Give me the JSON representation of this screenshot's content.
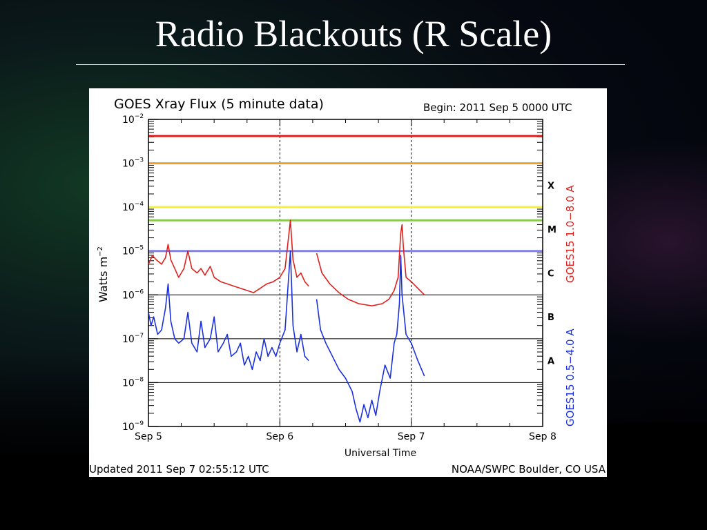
{
  "slide": {
    "title": "Radio Blackouts (R Scale)"
  },
  "chart_data": {
    "type": "line",
    "title": "GOES Xray Flux (5 minute data)",
    "begin_label": "Begin:  2011 Sep 5 0000 UTC",
    "xlabel": "Universal Time",
    "ylabel": "Watts m",
    "ylabel_sup": "−2",
    "updated_label": "Updated 2011 Sep  7 02:55:12 UTC",
    "source_label": "NOAA/SWPC Boulder, CO USA",
    "y_scale": "log",
    "ylim_exp": [
      -9,
      -2
    ],
    "xlim_days": [
      0,
      3
    ],
    "x_ticks": [
      {
        "d": 0,
        "label": "Sep 5"
      },
      {
        "d": 1,
        "label": "Sep 6"
      },
      {
        "d": 2,
        "label": "Sep 7"
      },
      {
        "d": 3,
        "label": "Sep 8"
      }
    ],
    "y_ticks": [
      {
        "exp": -2,
        "base": "10",
        "sup": "−2"
      },
      {
        "exp": -3,
        "base": "10",
        "sup": "−3"
      },
      {
        "exp": -4,
        "base": "10",
        "sup": "−4"
      },
      {
        "exp": -5,
        "base": "10",
        "sup": "−5"
      },
      {
        "exp": -6,
        "base": "10",
        "sup": "−6"
      },
      {
        "exp": -7,
        "base": "10",
        "sup": "−7"
      },
      {
        "exp": -8,
        "base": "10",
        "sup": "−8"
      },
      {
        "exp": -9,
        "base": "10",
        "sup": "−9"
      }
    ],
    "class_labels": [
      {
        "label": "X",
        "exp": -3.5
      },
      {
        "label": "M",
        "exp": -4.5
      },
      {
        "label": "C",
        "exp": -5.5
      },
      {
        "label": "B",
        "exp": -6.5
      },
      {
        "label": "A",
        "exp": -7.5
      }
    ],
    "threshold_lines": [
      {
        "exp": -2.38,
        "color": "#e0201c"
      },
      {
        "exp": -3.0,
        "color": "#f0a030"
      },
      {
        "exp": -4.0,
        "color": "#f0f040"
      },
      {
        "exp": -4.3,
        "color": "#8cc850"
      },
      {
        "exp": -5.0,
        "color": "#8080e0"
      }
    ],
    "series": [
      {
        "name": "GOES15 1.0−8.0 A",
        "color": "#e0201c",
        "points": [
          [
            0.0,
            -5.3
          ],
          [
            0.03,
            -5.1
          ],
          [
            0.06,
            -5.2
          ],
          [
            0.1,
            -5.3
          ],
          [
            0.13,
            -5.15
          ],
          [
            0.15,
            -4.85
          ],
          [
            0.17,
            -5.2
          ],
          [
            0.2,
            -5.4
          ],
          [
            0.23,
            -5.6
          ],
          [
            0.27,
            -5.4
          ],
          [
            0.3,
            -5.0
          ],
          [
            0.33,
            -5.4
          ],
          [
            0.37,
            -5.5
          ],
          [
            0.4,
            -5.4
          ],
          [
            0.43,
            -5.55
          ],
          [
            0.47,
            -5.35
          ],
          [
            0.5,
            -5.6
          ],
          [
            0.55,
            -5.7
          ],
          [
            0.6,
            -5.75
          ],
          [
            0.65,
            -5.8
          ],
          [
            0.7,
            -5.85
          ],
          [
            0.75,
            -5.9
          ],
          [
            0.8,
            -5.95
          ],
          [
            0.85,
            -5.85
          ],
          [
            0.9,
            -5.75
          ],
          [
            0.95,
            -5.7
          ],
          [
            1.0,
            -5.6
          ],
          [
            1.04,
            -5.4
          ],
          [
            1.08,
            -4.3
          ],
          [
            1.1,
            -5.2
          ],
          [
            1.13,
            -5.6
          ],
          [
            1.16,
            -5.5
          ],
          [
            1.19,
            -5.7
          ],
          [
            1.22,
            -5.8
          ]
        ],
        "segment2": [
          [
            1.28,
            -5.05
          ],
          [
            1.32,
            -5.5
          ],
          [
            1.38,
            -5.75
          ],
          [
            1.45,
            -5.95
          ],
          [
            1.52,
            -6.1
          ],
          [
            1.6,
            -6.2
          ],
          [
            1.7,
            -6.25
          ],
          [
            1.78,
            -6.2
          ],
          [
            1.83,
            -6.1
          ],
          [
            1.87,
            -5.9
          ],
          [
            1.9,
            -5.6
          ],
          [
            1.92,
            -4.6
          ],
          [
            1.93,
            -4.4
          ],
          [
            1.94,
            -4.9
          ],
          [
            1.96,
            -5.6
          ],
          [
            2.0,
            -5.7
          ],
          [
            2.05,
            -5.85
          ],
          [
            2.1,
            -6.0
          ]
        ]
      },
      {
        "name": "GOES15 0.5−4.0 A",
        "color": "#1a30e0",
        "points": [
          [
            0.0,
            -6.4
          ],
          [
            0.02,
            -6.7
          ],
          [
            0.04,
            -6.5
          ],
          [
            0.07,
            -6.9
          ],
          [
            0.1,
            -6.8
          ],
          [
            0.13,
            -6.3
          ],
          [
            0.15,
            -5.75
          ],
          [
            0.17,
            -6.6
          ],
          [
            0.2,
            -7.0
          ],
          [
            0.23,
            -7.1
          ],
          [
            0.27,
            -7.0
          ],
          [
            0.3,
            -6.4
          ],
          [
            0.33,
            -7.1
          ],
          [
            0.37,
            -7.3
          ],
          [
            0.4,
            -6.6
          ],
          [
            0.43,
            -7.2
          ],
          [
            0.47,
            -7.0
          ],
          [
            0.5,
            -6.5
          ],
          [
            0.53,
            -7.3
          ],
          [
            0.57,
            -7.1
          ],
          [
            0.6,
            -6.9
          ],
          [
            0.63,
            -7.4
          ],
          [
            0.67,
            -7.3
          ],
          [
            0.7,
            -7.1
          ],
          [
            0.73,
            -7.6
          ],
          [
            0.76,
            -7.4
          ],
          [
            0.79,
            -7.7
          ],
          [
            0.82,
            -7.3
          ],
          [
            0.85,
            -7.5
          ],
          [
            0.88,
            -7.0
          ],
          [
            0.91,
            -7.4
          ],
          [
            0.94,
            -7.2
          ],
          [
            0.97,
            -7.4
          ],
          [
            1.0,
            -7.1
          ],
          [
            1.04,
            -6.8
          ],
          [
            1.08,
            -5.0
          ],
          [
            1.1,
            -6.7
          ],
          [
            1.13,
            -7.3
          ],
          [
            1.16,
            -6.9
          ],
          [
            1.19,
            -7.4
          ],
          [
            1.22,
            -7.5
          ]
        ],
        "segment2": [
          [
            1.28,
            -6.1
          ],
          [
            1.31,
            -6.8
          ],
          [
            1.35,
            -7.1
          ],
          [
            1.4,
            -7.4
          ],
          [
            1.45,
            -7.7
          ],
          [
            1.5,
            -7.9
          ],
          [
            1.55,
            -8.2
          ],
          [
            1.58,
            -8.6
          ],
          [
            1.61,
            -8.9
          ],
          [
            1.64,
            -8.5
          ],
          [
            1.67,
            -8.8
          ],
          [
            1.7,
            -8.4
          ],
          [
            1.73,
            -8.75
          ],
          [
            1.76,
            -8.2
          ],
          [
            1.8,
            -7.6
          ],
          [
            1.84,
            -7.9
          ],
          [
            1.87,
            -7.1
          ],
          [
            1.89,
            -6.9
          ],
          [
            1.91,
            -6.2
          ],
          [
            1.92,
            -5.1
          ],
          [
            1.93,
            -6.0
          ],
          [
            1.96,
            -6.9
          ],
          [
            2.0,
            -7.1
          ],
          [
            2.05,
            -7.5
          ],
          [
            2.1,
            -7.85
          ]
        ]
      }
    ]
  }
}
